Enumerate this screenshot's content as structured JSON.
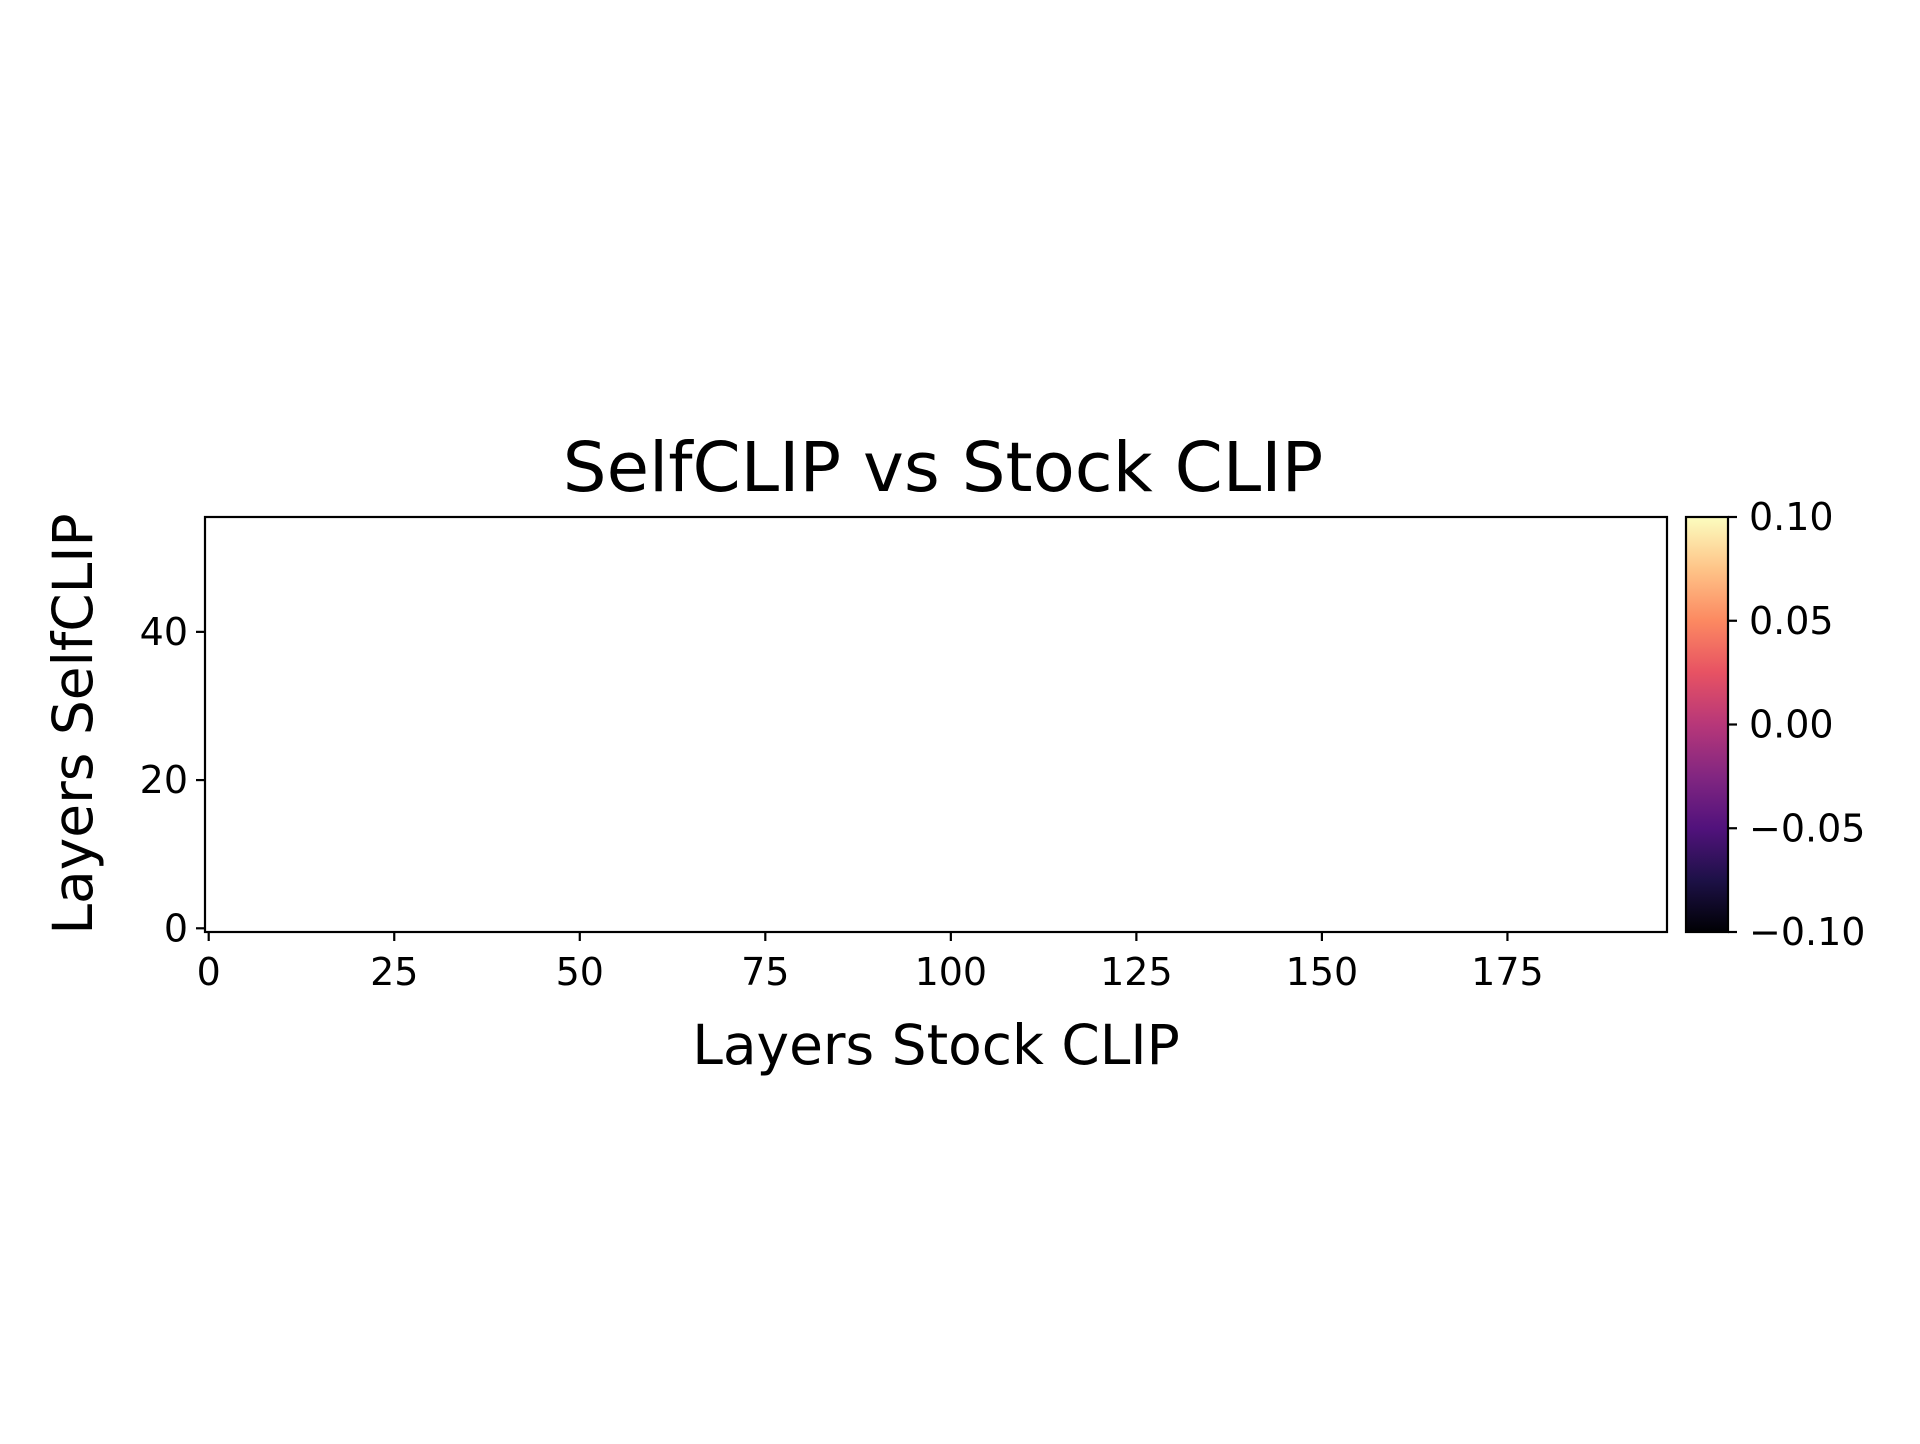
{
  "chart_data": {
    "type": "heatmap",
    "title": "SelfCLIP vs Stock CLIP",
    "xlabel": "Layers Stock CLIP",
    "ylabel": "Layers SelfCLIP",
    "xlim": [
      -0.5,
      196.5
    ],
    "ylim": [
      -0.5,
      55.5
    ],
    "x_ticks": [
      0,
      25,
      50,
      75,
      100,
      125,
      150,
      175
    ],
    "x_tick_labels": [
      "0",
      "25",
      "50",
      "75",
      "100",
      "125",
      "150",
      "175"
    ],
    "y_ticks": [
      0,
      20,
      40
    ],
    "y_tick_labels": [
      "0",
      "20",
      "40"
    ],
    "values": [],
    "colormap": "magma",
    "colorbar": {
      "min": -0.1,
      "max": 0.1,
      "ticks": [
        -0.1,
        -0.05,
        0.0,
        0.05,
        0.1
      ],
      "tick_labels": [
        "−0.10",
        "−0.05",
        "0.00",
        "0.05",
        "0.10"
      ],
      "gradient_colors": [
        "#000004",
        "#1d1147",
        "#51127c",
        "#822681",
        "#b73779",
        "#e75263",
        "#fc8961",
        "#fec488",
        "#fcfdbf"
      ]
    },
    "grid": false
  }
}
